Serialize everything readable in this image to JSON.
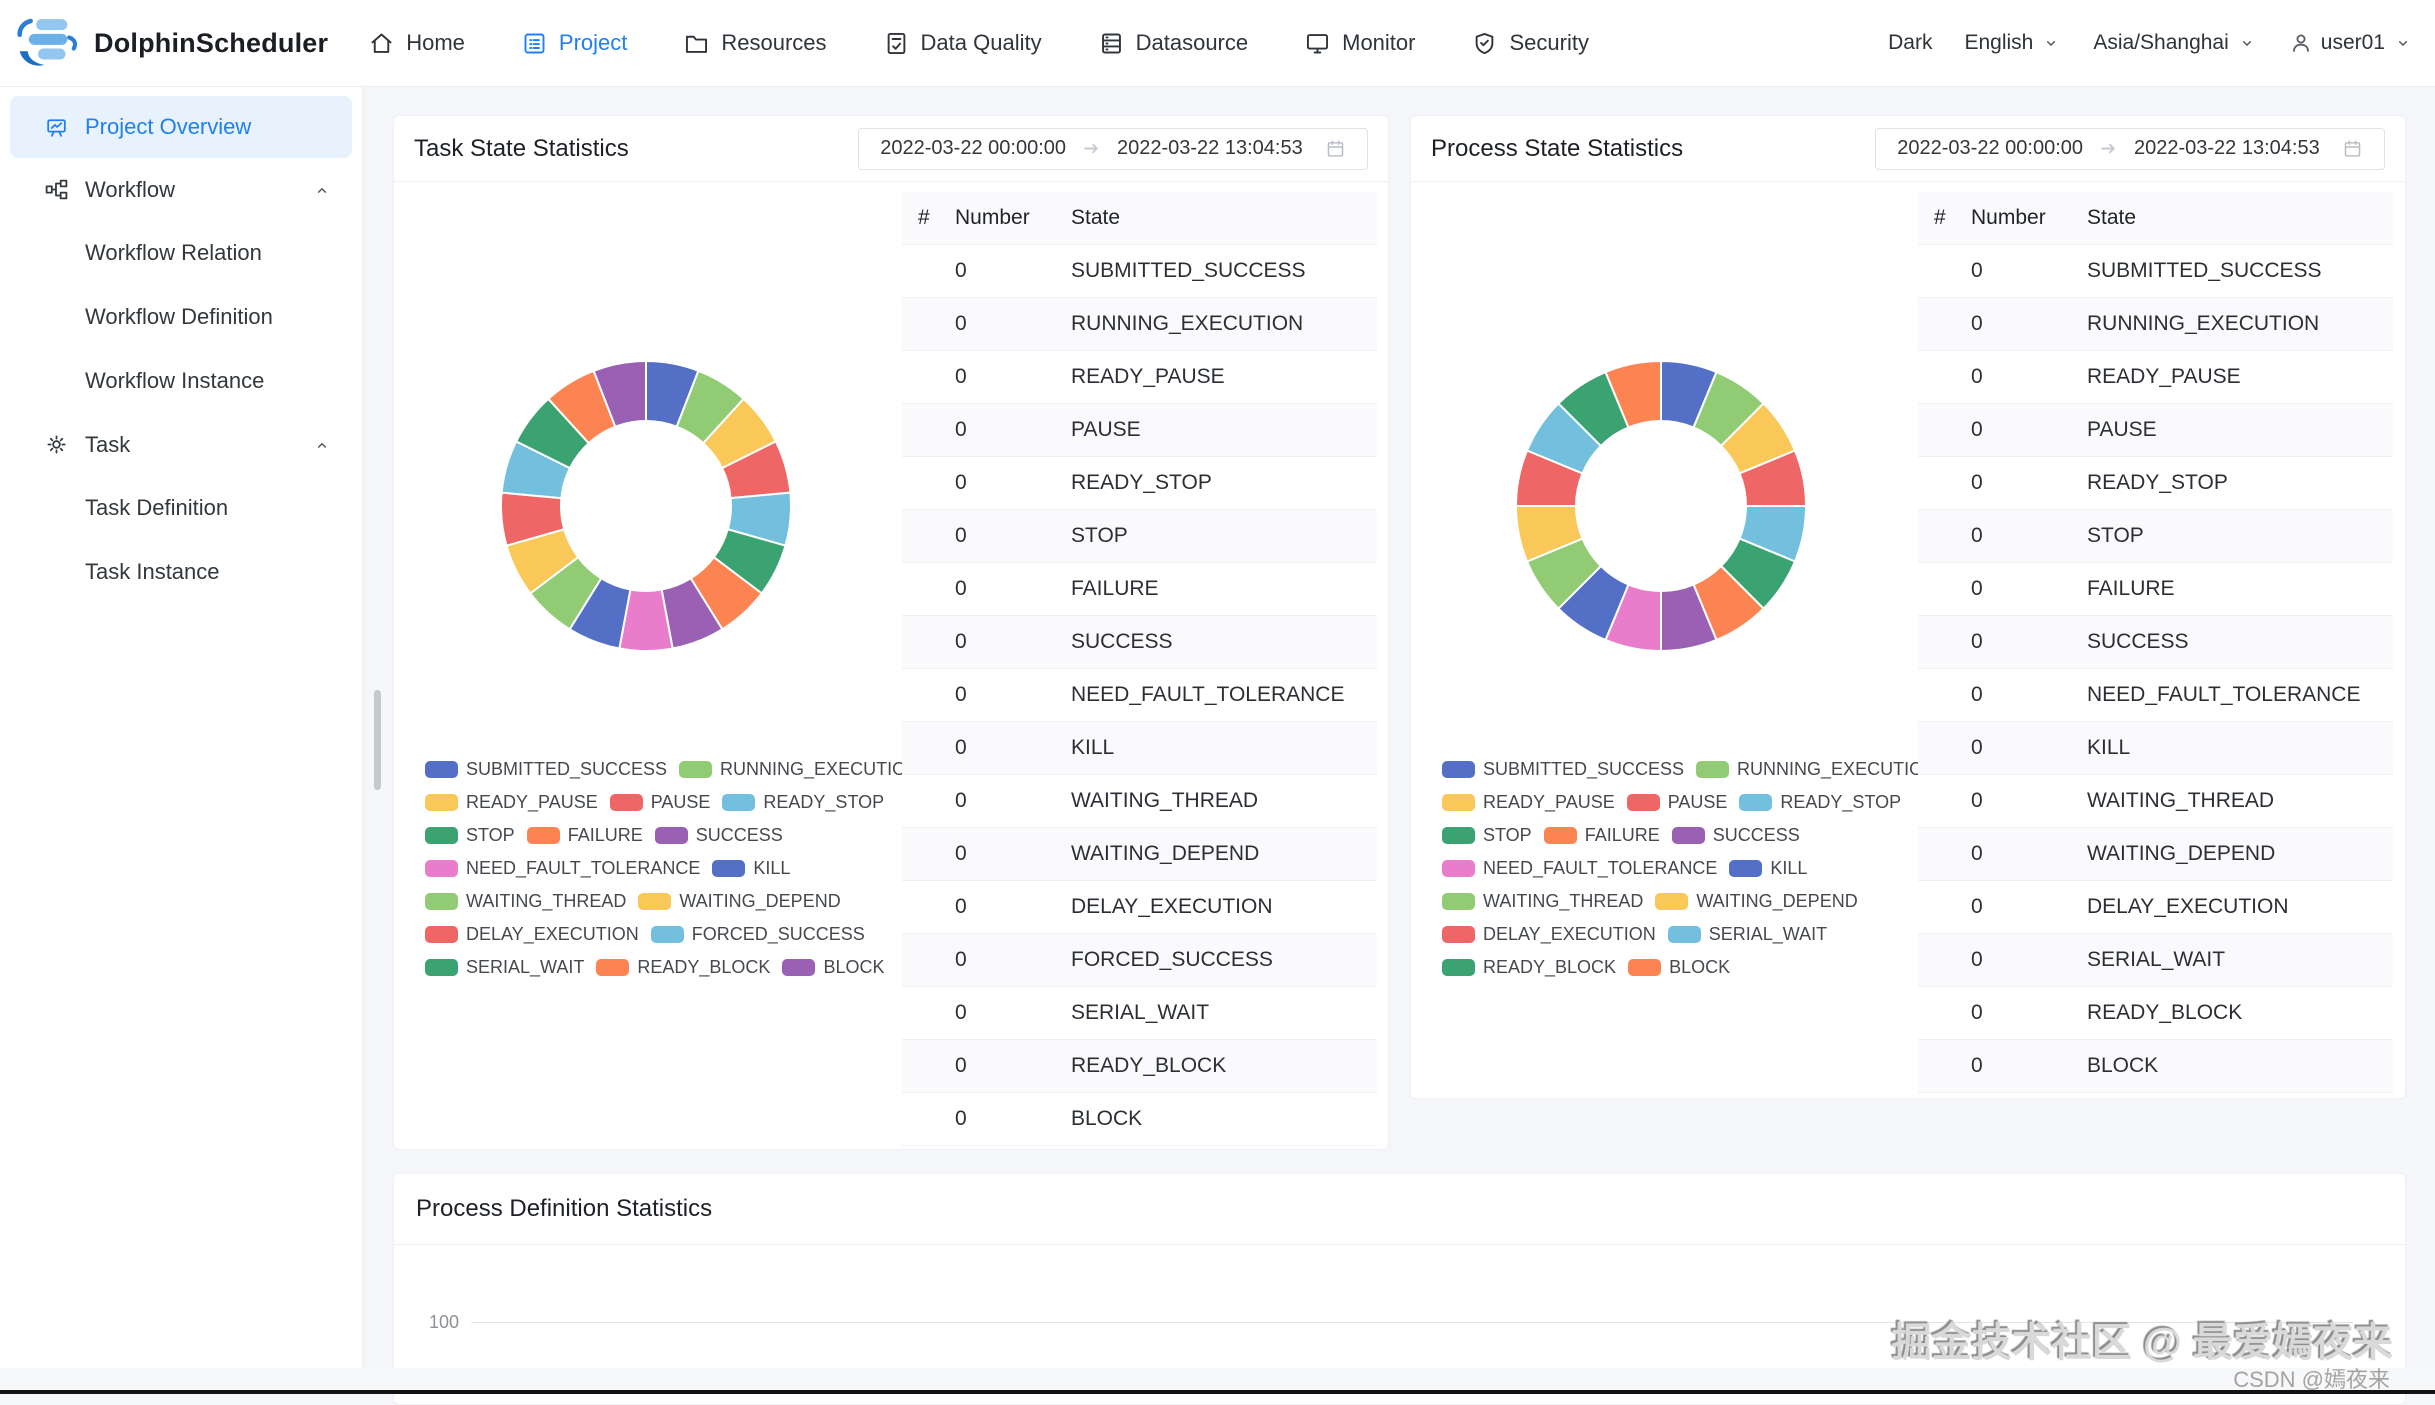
{
  "navbar": {
    "brand": "DolphinScheduler",
    "items": [
      {
        "label": "Home",
        "active": false
      },
      {
        "label": "Project",
        "active": true
      },
      {
        "label": "Resources",
        "active": false
      },
      {
        "label": "Data Quality",
        "active": false
      },
      {
        "label": "Datasource",
        "active": false
      },
      {
        "label": "Monitor",
        "active": false
      },
      {
        "label": "Security",
        "active": false
      }
    ],
    "theme": "Dark",
    "language": "English",
    "timezone": "Asia/Shanghai",
    "username": "user01"
  },
  "sidebar": {
    "overview": "Project Overview",
    "workflow": "Workflow",
    "workflow_children": [
      "Workflow Relation",
      "Workflow Definition",
      "Workflow Instance"
    ],
    "task": "Task",
    "task_children": [
      "Task Definition",
      "Task Instance"
    ]
  },
  "task_card": {
    "title": "Task State Statistics",
    "date_start": "2022-03-22 00:00:00",
    "date_end": "2022-03-22 13:04:53",
    "columns": {
      "hash": "#",
      "number": "Number",
      "state": "State"
    }
  },
  "process_card": {
    "title": "Process State Statistics",
    "date_start": "2022-03-22 00:00:00",
    "date_end": "2022-03-22 13:04:53",
    "columns": {
      "hash": "#",
      "number": "Number",
      "state": "State"
    }
  },
  "definition_card": {
    "title": "Process Definition Statistics",
    "visible_y_tick": "100"
  },
  "watermark": {
    "primary": "掘金技术社区 @ 最爱嫣夜来",
    "secondary": "CSDN @嫣夜来"
  },
  "chart_data": [
    {
      "type": "pie",
      "title": "Task State Statistics",
      "categories": [
        "SUBMITTED_SUCCESS",
        "RUNNING_EXECUTION",
        "READY_PAUSE",
        "PAUSE",
        "READY_STOP",
        "STOP",
        "FAILURE",
        "SUCCESS",
        "NEED_FAULT_TOLERANCE",
        "KILL",
        "WAITING_THREAD",
        "WAITING_DEPEND",
        "DELAY_EXECUTION",
        "FORCED_SUCCESS",
        "SERIAL_WAIT",
        "READY_BLOCK",
        "BLOCK"
      ],
      "values": [
        0,
        0,
        0,
        0,
        0,
        0,
        0,
        0,
        0,
        0,
        0,
        0,
        0,
        0,
        0,
        0,
        0
      ],
      "colors": [
        "#5470c6",
        "#91cc75",
        "#fac858",
        "#ee6666",
        "#73c0de",
        "#3ba272",
        "#fc8452",
        "#9a60b4",
        "#ea7ccc",
        "#5470c6",
        "#91cc75",
        "#fac858",
        "#ee6666",
        "#73c0de",
        "#3ba272",
        "#fc8452",
        "#9a60b4"
      ],
      "legend_position": "bottom-left",
      "note": "all counts are 0; donut drawn as equal placeholder segments"
    },
    {
      "type": "pie",
      "title": "Process State Statistics",
      "categories": [
        "SUBMITTED_SUCCESS",
        "RUNNING_EXECUTION",
        "READY_PAUSE",
        "PAUSE",
        "READY_STOP",
        "STOP",
        "FAILURE",
        "SUCCESS",
        "NEED_FAULT_TOLERANCE",
        "KILL",
        "WAITING_THREAD",
        "WAITING_DEPEND",
        "DELAY_EXECUTION",
        "SERIAL_WAIT",
        "READY_BLOCK",
        "BLOCK"
      ],
      "values": [
        0,
        0,
        0,
        0,
        0,
        0,
        0,
        0,
        0,
        0,
        0,
        0,
        0,
        0,
        0,
        0
      ],
      "colors": [
        "#5470c6",
        "#91cc75",
        "#fac858",
        "#ee6666",
        "#73c0de",
        "#3ba272",
        "#fc8452",
        "#9a60b4",
        "#ea7ccc",
        "#5470c6",
        "#91cc75",
        "#fac858",
        "#ee6666",
        "#73c0de",
        "#3ba272",
        "#fc8452"
      ],
      "legend_position": "bottom-left",
      "note": "all counts are 0; donut drawn as equal placeholder segments"
    },
    {
      "type": "bar",
      "title": "Process Definition Statistics",
      "categories": [],
      "values": [],
      "ylim": [
        0,
        100
      ],
      "visible_ticks": [
        "100"
      ],
      "note": "chart mostly cut off at bottom of screenshot; only top gridline with tick 100 visible"
    }
  ]
}
